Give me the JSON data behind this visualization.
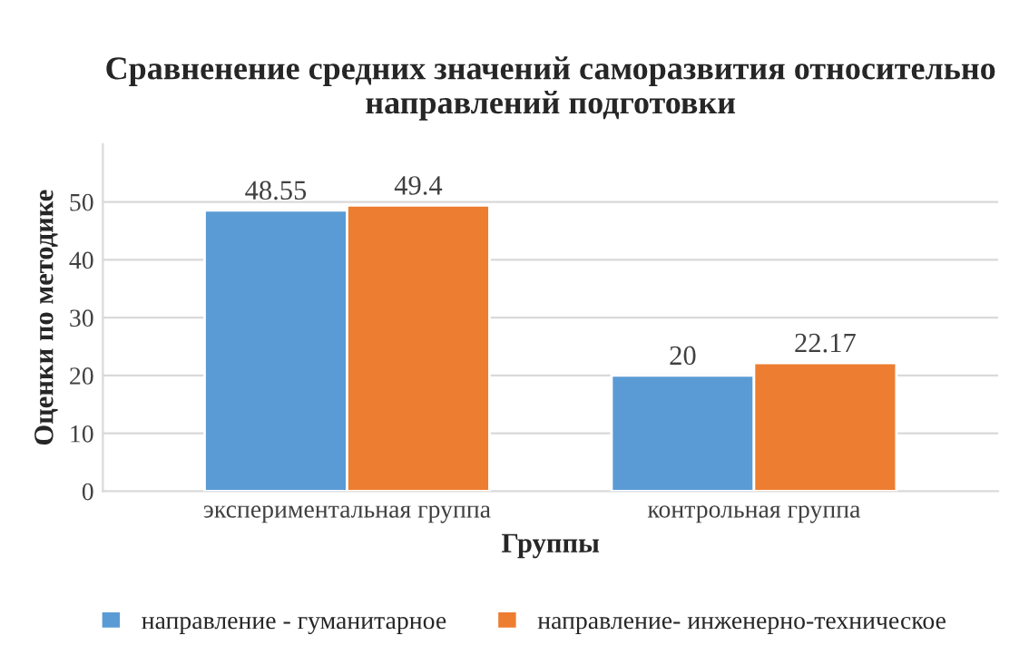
{
  "chart_data": {
    "type": "bar",
    "title": "Сравненение средних значений саморазвития относительно направлений подготовки",
    "xlabel": "Группы",
    "ylabel": "Оценки по методике",
    "categories": [
      "экспериментальная группа",
      "контрольная группа"
    ],
    "series": [
      {
        "name": "направление - гуманитарное",
        "color": "#5b9bd5",
        "values": [
          48.55,
          20
        ]
      },
      {
        "name": "направление- инженерно-техническое",
        "color": "#ed7d31",
        "values": [
          49.4,
          22.17
        ]
      }
    ],
    "ylim": [
      0,
      60
    ],
    "yticks": [
      0,
      10,
      20,
      30,
      40,
      50
    ],
    "grid": "y",
    "legend": "bottom",
    "data_labels": true
  }
}
